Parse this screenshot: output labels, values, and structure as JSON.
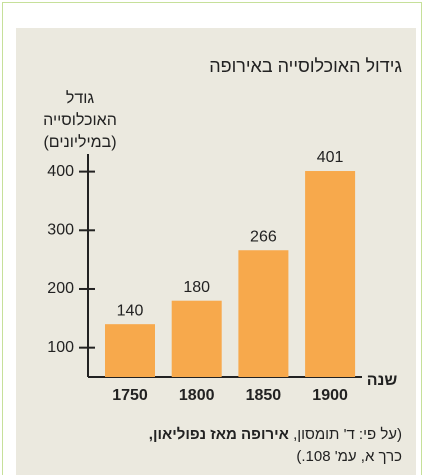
{
  "chart_data": {
    "type": "bar",
    "title": "גידול האוכלוסייה באירופה",
    "y_label": [
      "גודל",
      "האוכלוסייה",
      "(במיליונים)"
    ],
    "x_label": "שנה",
    "categories": [
      "1750",
      "1800",
      "1850",
      "1900"
    ],
    "values": [
      140,
      180,
      266,
      401
    ],
    "color": "#f7a94c",
    "ylim": [
      50,
      430
    ],
    "yticks": [
      100,
      200,
      300,
      400
    ],
    "source": {
      "prefix": "(על פי: ד' תומסון,",
      "title": "אירופה מאז נפוליאון,",
      "line2": "כרך א, עמ' 108.)"
    }
  }
}
